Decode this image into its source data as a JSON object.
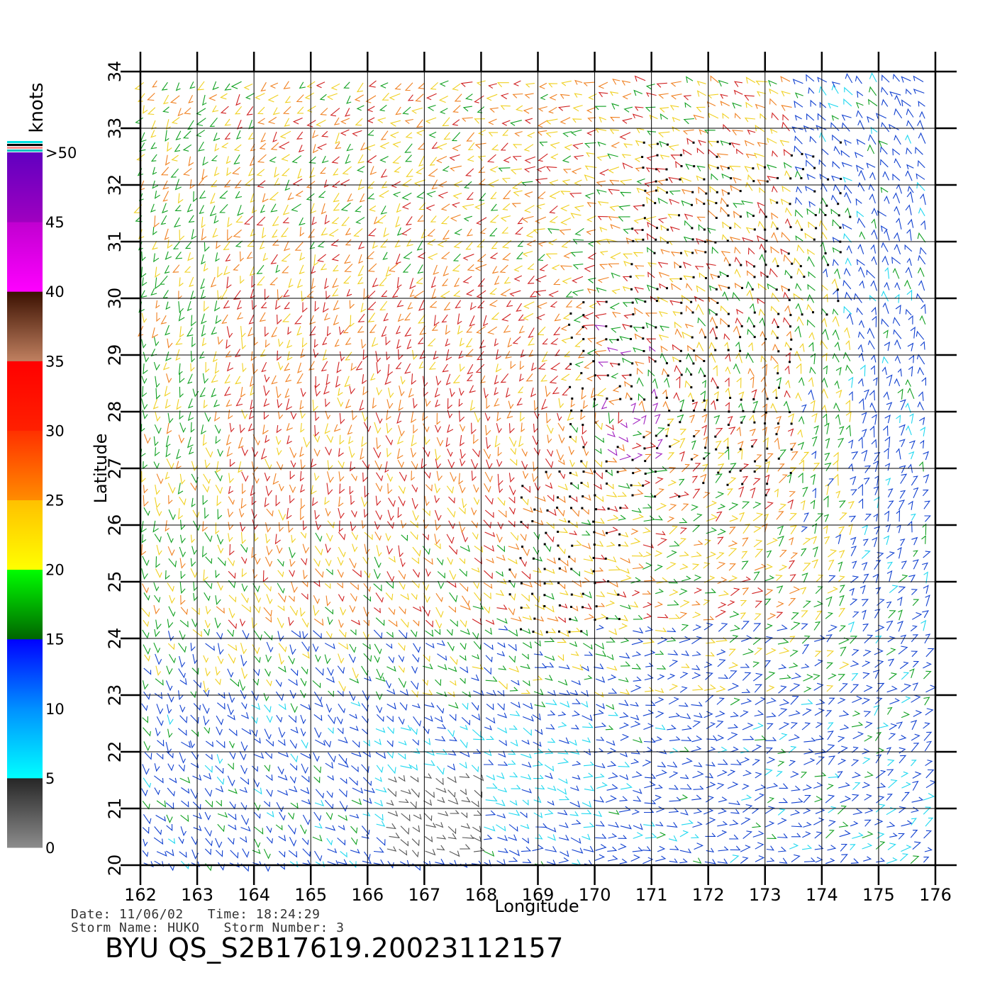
{
  "chart_data": {
    "type": "wind-barb-field",
    "xlabel": "Longitude",
    "ylabel": "Latitude",
    "xlim": [
      162,
      176
    ],
    "ylim": [
      20,
      34
    ],
    "x_ticks": [
      "162",
      "163",
      "164",
      "165",
      "166",
      "167",
      "168",
      "169",
      "170",
      "171",
      "172",
      "173",
      "174",
      "175",
      "176"
    ],
    "y_ticks": [
      "20",
      "21",
      "22",
      "23",
      "24",
      "25",
      "26",
      "27",
      "28",
      "29",
      "30",
      "31",
      "32",
      "33",
      "34"
    ],
    "grid": true,
    "colorbar": {
      "title": "knots",
      "placement": "left",
      "labels": [
        "0",
        "5",
        "10",
        "15",
        "20",
        "25",
        "30",
        "35",
        "40",
        "45",
        ">50"
      ],
      "bands": [
        {
          "from": 0,
          "to": 5,
          "stops": [
            "#8c8c8c",
            "#262626"
          ]
        },
        {
          "from": 5,
          "to": 10,
          "stops": [
            "#00ffff",
            "#0090ff"
          ]
        },
        {
          "from": 10,
          "to": 15,
          "stops": [
            "#0090ff",
            "#0000ff"
          ]
        },
        {
          "from": 15,
          "to": 20,
          "stops": [
            "#006400",
            "#00ff00"
          ]
        },
        {
          "from": 20,
          "to": 25,
          "stops": [
            "#ffff00",
            "#ffc000"
          ]
        },
        {
          "from": 25,
          "to": 30,
          "stops": [
            "#ff8c00",
            "#ff3000"
          ]
        },
        {
          "from": 30,
          "to": 35,
          "stops": [
            "#ff2000",
            "#ff0000"
          ]
        },
        {
          "from": 35,
          "to": 40,
          "stops": [
            "#c08060",
            "#3a1000"
          ]
        },
        {
          "from": 40,
          "to": 45,
          "stops": [
            "#ff00ff",
            "#c000d0"
          ]
        },
        {
          "from": 45,
          "to": 50,
          "stops": [
            "#a000c0",
            "#6000c0"
          ]
        }
      ],
      "top_stripes": [
        "#00e0e0",
        "#000000",
        "#ff9090",
        "#00c0c0"
      ]
    },
    "speed_colors": {
      "gray": "#555555",
      "cyan": "#1fd8f0",
      "blue": "#1040d0",
      "green": "#10a020",
      "yellow": "#f0d020",
      "orange": "#f08020",
      "red": "#d02020",
      "purple": "#a020c0"
    },
    "wind_regions": [
      {
        "name": "gray",
        "lon": [
          166.3,
          168.0
        ],
        "lat": [
          20.2,
          21.6
        ],
        "knots": 3
      },
      {
        "name": "cyan",
        "lon": [
          166.0,
          170.0
        ],
        "lat": [
          20.5,
          22.6
        ],
        "knots": 8
      },
      {
        "name": "blue-south",
        "lon": [
          162,
          176
        ],
        "lat": [
          20,
          23.2
        ],
        "knots": 12
      },
      {
        "name": "blue-northeast",
        "lon": [
          173.5,
          176
        ],
        "lat": [
          31.5,
          34
        ],
        "knots": 12
      },
      {
        "name": "blue-east",
        "lon": [
          174.5,
          176
        ],
        "lat": [
          23,
          31.5
        ],
        "knots": 13
      },
      {
        "name": "green-west",
        "lon": [
          162,
          163.5
        ],
        "lat": [
          23.5,
          34
        ],
        "knots": 18
      },
      {
        "name": "red-core",
        "lon": [
          163.5,
          169.5
        ],
        "lat": [
          26.0,
          30.5
        ],
        "knots": 31
      },
      {
        "name": "purple-core",
        "lon": [
          170.2,
          171.2
        ],
        "lat": [
          27.0,
          29.8
        ],
        "knots": 41
      }
    ],
    "flagged_rain_regions": [
      {
        "lon": [
          170.5,
          174.5
        ],
        "lat": [
          29.5,
          32.8
        ]
      },
      {
        "lon": [
          169.5,
          173.5
        ],
        "lat": [
          26.5,
          30.0
        ]
      },
      {
        "lon": [
          168.5,
          170.5
        ],
        "lat": [
          24.0,
          27.0
        ]
      }
    ]
  },
  "footer": {
    "date_label": "Date:",
    "date_value": "11/06/02",
    "time_label": "Time:",
    "time_value": "18:24:29",
    "storm_name_label": "Storm Name:",
    "storm_name_value": "HUKO",
    "storm_number_label": "Storm Number:",
    "storm_number_value": "3",
    "file_title": "BYU  QS_S2B17619.20023112157"
  }
}
